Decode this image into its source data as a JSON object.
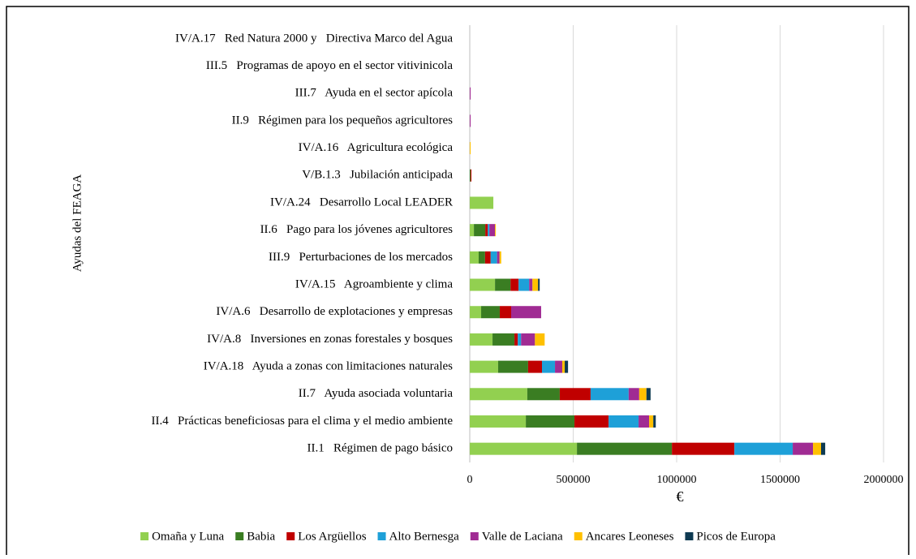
{
  "chart_data": {
    "type": "stacked-barh",
    "xlabel": "€",
    "ylabel": "Ayudas del FEAGA",
    "categories": [
      "IV/A.17   Red Natura 2000 y   Directiva Marco del Agua",
      "III.5   Programas de apoyo en el sector vitivinicola",
      "III.7   Ayuda en el sector apícola",
      "II.9   Régimen para los pequeños agricultores",
      "IV/A.16   Agricultura ecológica",
      "V/B.1.3   Jubilación anticipada",
      "IV/A.24   Desarrollo Local LEADER",
      "II.6   Pago para los jóvenes agricultores",
      "III.9   Perturbaciones de los mercados",
      "IV/A.15   Agroambiente y clima",
      "IV/A.6   Desarrollo de explotaciones y empresas",
      "IV/A.8   Inversiones en zonas forestales y bosques",
      "IV/A.18   Ayuda a zonas con limitaciones naturales",
      "II.7   Ayuda asociada voluntaria",
      "II.4   Prácticas beneficiosas para el clima y el medio ambiente",
      "II.1   Régimen de pago básico"
    ],
    "series": [
      {
        "name": "Omaña y Luna",
        "color": "#92d050",
        "values": [
          0,
          0,
          0,
          0,
          0,
          0,
          114000,
          20000,
          43000,
          122000,
          55000,
          110000,
          137000,
          278000,
          271000,
          518000
        ]
      },
      {
        "name": "Babia",
        "color": "#3a7d22",
        "values": [
          0,
          0,
          0,
          0,
          0,
          4000,
          0,
          55000,
          31000,
          75000,
          90000,
          106000,
          145000,
          157000,
          235000,
          459000
        ]
      },
      {
        "name": "Los Argüellos",
        "color": "#c00000",
        "values": [
          0,
          0,
          0,
          0,
          0,
          4000,
          0,
          12000,
          27000,
          39000,
          55000,
          16000,
          67000,
          149000,
          165000,
          302000
        ]
      },
      {
        "name": "Alto Bernesga",
        "color": "#1ea0d8",
        "values": [
          0,
          0,
          0,
          0,
          0,
          0,
          0,
          8000,
          31000,
          51000,
          0,
          16000,
          63000,
          184000,
          145000,
          282000
        ]
      },
      {
        "name": "Valle de Laciana",
        "color": "#a02b93",
        "values": [
          0,
          0,
          4000,
          4000,
          0,
          0,
          0,
          27000,
          12000,
          16000,
          145000,
          67000,
          35000,
          51000,
          51000,
          98000
        ]
      },
      {
        "name": "Ancares Leoneses",
        "color": "#ffc000",
        "values": [
          0,
          0,
          0,
          0,
          4000,
          0,
          0,
          4000,
          8000,
          27000,
          0,
          47000,
          12000,
          35000,
          20000,
          39000
        ]
      },
      {
        "name": "Picos de Europa",
        "color": "#0e3a52",
        "values": [
          0,
          0,
          0,
          0,
          0,
          0,
          0,
          0,
          0,
          8000,
          0,
          0,
          16000,
          20000,
          12000,
          20000
        ]
      }
    ],
    "xlim": [
      0,
      2000000
    ],
    "xticks": [
      0,
      500000,
      1000000,
      1500000,
      2000000
    ],
    "grid": true,
    "legend": "bottom"
  }
}
